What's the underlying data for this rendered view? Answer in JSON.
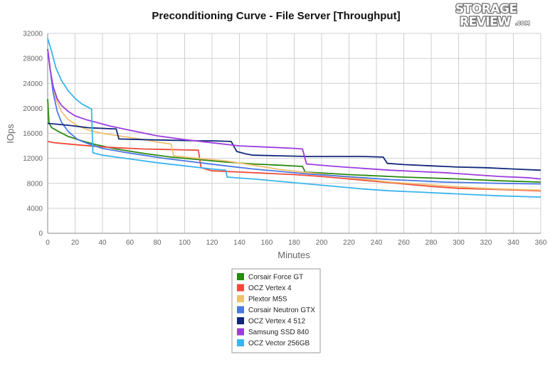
{
  "logo": {
    "line1": "STORAGE",
    "line2": "REVIEW",
    "suffix": ".COM"
  },
  "chart_data": {
    "type": "line",
    "title": "Preconditioning Curve - File Server [Throughput]",
    "xlabel": "Minutes",
    "ylabel": "IOps",
    "xlim": [
      0,
      360
    ],
    "ylim": [
      0,
      32000
    ],
    "xticks": [
      0,
      20,
      40,
      60,
      80,
      100,
      120,
      140,
      160,
      180,
      200,
      220,
      240,
      260,
      280,
      300,
      320,
      340,
      360
    ],
    "yticks": [
      0,
      4000,
      8000,
      12000,
      16000,
      20000,
      24000,
      28000,
      32000
    ],
    "grid": true,
    "legend_position": "bottom-center",
    "series": [
      {
        "name": "Corsair Force GT",
        "color": "#2a8a12",
        "points": [
          [
            0,
            21500
          ],
          [
            1,
            17600
          ],
          [
            3,
            16900
          ],
          [
            8,
            16300
          ],
          [
            15,
            15500
          ],
          [
            25,
            14800
          ],
          [
            35,
            14200
          ],
          [
            50,
            13500
          ],
          [
            70,
            12800
          ],
          [
            90,
            12200
          ],
          [
            110,
            11800
          ],
          [
            130,
            11400
          ],
          [
            150,
            11100
          ],
          [
            170,
            10900
          ],
          [
            186,
            10700
          ],
          [
            188,
            9800
          ],
          [
            220,
            9400
          ],
          [
            260,
            9000
          ],
          [
            300,
            8700
          ],
          [
            330,
            8400
          ],
          [
            360,
            8200
          ]
        ]
      },
      {
        "name": "OCZ Vertex 4",
        "color": "#f04a3a",
        "points": [
          [
            0,
            14700
          ],
          [
            5,
            14500
          ],
          [
            20,
            14200
          ],
          [
            35,
            13900
          ],
          [
            50,
            13700
          ],
          [
            70,
            13500
          ],
          [
            90,
            13400
          ],
          [
            110,
            13300
          ],
          [
            112,
            10500
          ],
          [
            120,
            10000
          ],
          [
            140,
            9800
          ],
          [
            160,
            9600
          ],
          [
            180,
            9400
          ],
          [
            200,
            9100
          ],
          [
            220,
            8700
          ],
          [
            240,
            8300
          ],
          [
            260,
            7900
          ],
          [
            280,
            7500
          ],
          [
            300,
            7200
          ],
          [
            330,
            7000
          ],
          [
            360,
            6800
          ]
        ]
      },
      {
        "name": "Plextor M5S",
        "color": "#f0c070",
        "points": [
          [
            0,
            29500
          ],
          [
            3,
            24500
          ],
          [
            6,
            21500
          ],
          [
            10,
            19500
          ],
          [
            15,
            18200
          ],
          [
            22,
            17200
          ],
          [
            30,
            16500
          ],
          [
            40,
            16000
          ],
          [
            55,
            15500
          ],
          [
            70,
            15000
          ],
          [
            80,
            14600
          ],
          [
            90,
            14300
          ],
          [
            92,
            12400
          ],
          [
            110,
            12000
          ],
          [
            130,
            11600
          ],
          [
            150,
            10900
          ],
          [
            170,
            10200
          ],
          [
            190,
            9700
          ],
          [
            210,
            9200
          ],
          [
            230,
            8700
          ],
          [
            250,
            8200
          ],
          [
            270,
            7900
          ],
          [
            290,
            7600
          ],
          [
            310,
            7300
          ],
          [
            330,
            7100
          ],
          [
            360,
            6900
          ]
        ]
      },
      {
        "name": "Corsair Neutron GTX",
        "color": "#4a78e6",
        "points": [
          [
            0,
            29500
          ],
          [
            2,
            26000
          ],
          [
            4,
            22500
          ],
          [
            7,
            19500
          ],
          [
            10,
            17800
          ],
          [
            15,
            16300
          ],
          [
            22,
            15000
          ],
          [
            30,
            14300
          ],
          [
            40,
            13600
          ],
          [
            55,
            13000
          ],
          [
            70,
            12500
          ],
          [
            85,
            12000
          ],
          [
            100,
            11600
          ],
          [
            115,
            11200
          ],
          [
            130,
            10800
          ],
          [
            150,
            10300
          ],
          [
            170,
            9900
          ],
          [
            190,
            9500
          ],
          [
            210,
            9200
          ],
          [
            230,
            8900
          ],
          [
            250,
            8600
          ],
          [
            270,
            8400
          ],
          [
            290,
            8200
          ],
          [
            310,
            8100
          ],
          [
            330,
            8000
          ],
          [
            360,
            7900
          ]
        ]
      },
      {
        "name": "OCZ Vertex 4 512",
        "color": "#10287a",
        "points": [
          [
            0,
            17600
          ],
          [
            15,
            17300
          ],
          [
            30,
            16900
          ],
          [
            50,
            16700
          ],
          [
            52,
            15100
          ],
          [
            70,
            15000
          ],
          [
            90,
            14900
          ],
          [
            110,
            14800
          ],
          [
            120,
            14800
          ],
          [
            134,
            14700
          ],
          [
            138,
            13100
          ],
          [
            145,
            12700
          ],
          [
            150,
            12500
          ],
          [
            170,
            12400
          ],
          [
            190,
            12300
          ],
          [
            210,
            12300
          ],
          [
            230,
            12300
          ],
          [
            245,
            12200
          ],
          [
            248,
            11200
          ],
          [
            260,
            11000
          ],
          [
            280,
            10800
          ],
          [
            300,
            10600
          ],
          [
            320,
            10500
          ],
          [
            340,
            10300
          ],
          [
            360,
            10100
          ]
        ]
      },
      {
        "name": "Samsung SSD 840",
        "color": "#9b3ce0",
        "points": [
          [
            0,
            29500
          ],
          [
            2,
            26000
          ],
          [
            4,
            23500
          ],
          [
            7,
            21500
          ],
          [
            10,
            20500
          ],
          [
            15,
            19500
          ],
          [
            20,
            18800
          ],
          [
            28,
            18200
          ],
          [
            35,
            17800
          ],
          [
            45,
            17200
          ],
          [
            60,
            16500
          ],
          [
            80,
            15600
          ],
          [
            100,
            15000
          ],
          [
            120,
            14500
          ],
          [
            140,
            14000
          ],
          [
            160,
            13800
          ],
          [
            180,
            13600
          ],
          [
            186,
            13500
          ],
          [
            189,
            11100
          ],
          [
            210,
            10700
          ],
          [
            230,
            10400
          ],
          [
            250,
            10100
          ],
          [
            270,
            9900
          ],
          [
            290,
            9700
          ],
          [
            310,
            9400
          ],
          [
            330,
            9100
          ],
          [
            350,
            8900
          ],
          [
            360,
            8700
          ]
        ]
      },
      {
        "name": "OCZ Vector 256GB",
        "color": "#3ab4ee",
        "points": [
          [
            0,
            31200
          ],
          [
            3,
            29000
          ],
          [
            6,
            26500
          ],
          [
            10,
            24500
          ],
          [
            15,
            22800
          ],
          [
            20,
            21600
          ],
          [
            25,
            20700
          ],
          [
            32,
            19900
          ],
          [
            33,
            12900
          ],
          [
            40,
            12500
          ],
          [
            60,
            11900
          ],
          [
            80,
            11300
          ],
          [
            100,
            10800
          ],
          [
            120,
            10300
          ],
          [
            130,
            10100
          ],
          [
            131,
            9000
          ],
          [
            150,
            8700
          ],
          [
            170,
            8300
          ],
          [
            190,
            7900
          ],
          [
            210,
            7500
          ],
          [
            230,
            7100
          ],
          [
            250,
            6800
          ],
          [
            270,
            6600
          ],
          [
            290,
            6400
          ],
          [
            310,
            6200
          ],
          [
            330,
            6000
          ],
          [
            360,
            5800
          ]
        ]
      }
    ]
  }
}
